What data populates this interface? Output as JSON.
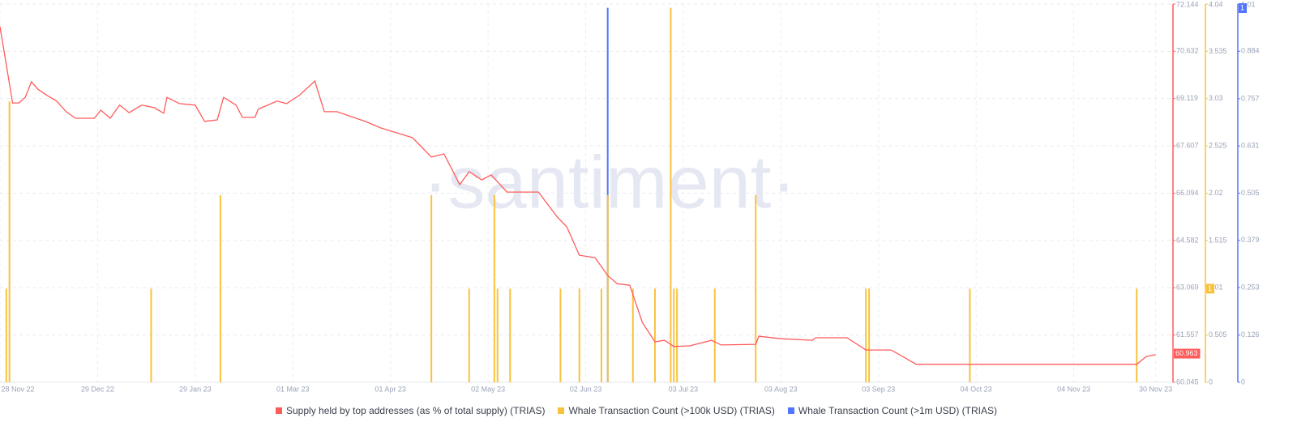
{
  "chart_data": {
    "type": "line-bar",
    "watermark": "·santiment·",
    "xlim": [
      "2022-11-28",
      "2023-12-05"
    ],
    "xticks": [
      {
        "value": "2022-11-28",
        "label": "28 Nov 22"
      },
      {
        "value": "2022-12-29",
        "label": "29 Dec 22"
      },
      {
        "value": "2023-01-29",
        "label": "29 Jan 23"
      },
      {
        "value": "2023-03-01",
        "label": "01 Mar 23"
      },
      {
        "value": "2023-04-01",
        "label": "01 Apr 23"
      },
      {
        "value": "2023-05-02",
        "label": "02 May 23"
      },
      {
        "value": "2023-06-02",
        "label": "02 Jun 23"
      },
      {
        "value": "2023-07-03",
        "label": "03 Jul 23"
      },
      {
        "value": "2023-08-03",
        "label": "03 Aug 23"
      },
      {
        "value": "2023-09-03",
        "label": "03 Sep 23"
      },
      {
        "value": "2023-10-04",
        "label": "04 Oct 23"
      },
      {
        "value": "2023-11-04",
        "label": "04 Nov 23"
      },
      {
        "value": "2023-11-30",
        "label": "30 Nov 23"
      }
    ],
    "ylim": [
      60.045,
      72.144
    ],
    "yticks": [
      60.045,
      61.557,
      63.069,
      64.582,
      66.094,
      67.607,
      69.119,
      70.632,
      72.144
    ],
    "y2lim": [
      0,
      4.04
    ],
    "y2ticks": [
      0,
      0.505,
      1.01,
      1.515,
      2.02,
      2.525,
      3.03,
      3.535,
      4.04
    ],
    "y3lim": [
      0,
      1.01
    ],
    "y3ticks": [
      0,
      0.126,
      0.253,
      0.379,
      0.505,
      0.631,
      0.757,
      0.884,
      1.01
    ],
    "grid": true,
    "series": [
      {
        "name": "Supply held by top addresses (as % of total supply) (TRIAS)",
        "type": "line",
        "axis": "y",
        "color": "#ff5b5b",
        "current_value": 60.963,
        "x": [
          "2022-11-28",
          "2022-11-30",
          "2022-12-02",
          "2022-12-04",
          "2022-12-06",
          "2022-12-08",
          "2022-12-10",
          "2022-12-13",
          "2022-12-16",
          "2022-12-19",
          "2022-12-22",
          "2022-12-28",
          "2022-12-30",
          "2023-01-02",
          "2023-01-05",
          "2023-01-08",
          "2023-01-12",
          "2023-01-16",
          "2023-01-19",
          "2023-01-20",
          "2023-01-24",
          "2023-01-29",
          "2023-02-01",
          "2023-02-05",
          "2023-02-07",
          "2023-02-11",
          "2023-02-13",
          "2023-02-17",
          "2023-02-18",
          "2023-02-24",
          "2023-02-27",
          "2023-03-03",
          "2023-03-08",
          "2023-03-11",
          "2023-03-15",
          "2023-03-24",
          "2023-03-29",
          "2023-04-08",
          "2023-04-14",
          "2023-04-18",
          "2023-04-23",
          "2023-04-26",
          "2023-04-30",
          "2023-05-03",
          "2023-05-08",
          "2023-05-18",
          "2023-05-24",
          "2023-05-27",
          "2023-05-31",
          "2023-06-05",
          "2023-06-09",
          "2023-06-12",
          "2023-06-16",
          "2023-06-20",
          "2023-06-24",
          "2023-06-27",
          "2023-06-30",
          "2023-07-05",
          "2023-07-12",
          "2023-07-15",
          "2023-07-26",
          "2023-07-27",
          "2023-08-03",
          "2023-08-13",
          "2023-08-14",
          "2023-08-24",
          "2023-08-30",
          "2023-09-07",
          "2023-09-15",
          "2023-11-24",
          "2023-11-27",
          "2023-11-30"
        ],
        "values": [
          71.42,
          70.2,
          68.98,
          68.98,
          69.16,
          69.66,
          69.42,
          69.22,
          69.04,
          68.7,
          68.49,
          68.49,
          68.75,
          68.49,
          68.91,
          68.67,
          68.91,
          68.83,
          68.65,
          69.16,
          68.96,
          68.91,
          68.39,
          68.44,
          69.16,
          68.91,
          68.52,
          68.52,
          68.78,
          69.04,
          68.96,
          69.22,
          69.68,
          68.7,
          68.7,
          68.39,
          68.18,
          67.87,
          67.25,
          67.35,
          66.37,
          66.78,
          66.52,
          66.68,
          66.13,
          66.13,
          65.33,
          65.02,
          64.11,
          64.03,
          63.46,
          63.2,
          63.15,
          61.96,
          61.34,
          61.39,
          61.19,
          61.21,
          61.39,
          61.24,
          61.26,
          61.52,
          61.44,
          61.39,
          61.47,
          61.47,
          61.08,
          61.08,
          60.62,
          60.62,
          60.87,
          60.93
        ]
      },
      {
        "name": "Whale Transaction Count (>100k USD) (TRIAS)",
        "type": "bar",
        "axis": "y2",
        "color": "#f9c23c",
        "current_value": 1,
        "x": [
          "2022-11-30",
          "2022-12-01",
          "2023-01-15",
          "2023-02-06",
          "2023-04-14",
          "2023-04-26",
          "2023-05-04",
          "2023-05-05",
          "2023-05-09",
          "2023-05-25",
          "2023-05-31",
          "2023-06-07",
          "2023-06-09",
          "2023-06-17",
          "2023-06-24",
          "2023-06-29",
          "2023-06-30",
          "2023-07-01",
          "2023-07-13",
          "2023-07-26",
          "2023-08-30",
          "2023-08-31",
          "2023-10-02",
          "2023-11-24"
        ],
        "values": [
          1,
          3,
          1,
          2,
          2,
          1,
          2,
          1,
          1,
          1,
          1,
          1,
          2,
          1,
          1,
          4,
          1,
          1,
          1,
          2,
          1,
          1,
          1,
          1
        ]
      },
      {
        "name": "Whale Transaction Count (>1m USD) (TRIAS)",
        "type": "bar",
        "axis": "y3",
        "color": "#5275ff",
        "current_value": 1,
        "x": [
          "2023-06-09"
        ],
        "values": [
          1
        ]
      }
    ]
  }
}
